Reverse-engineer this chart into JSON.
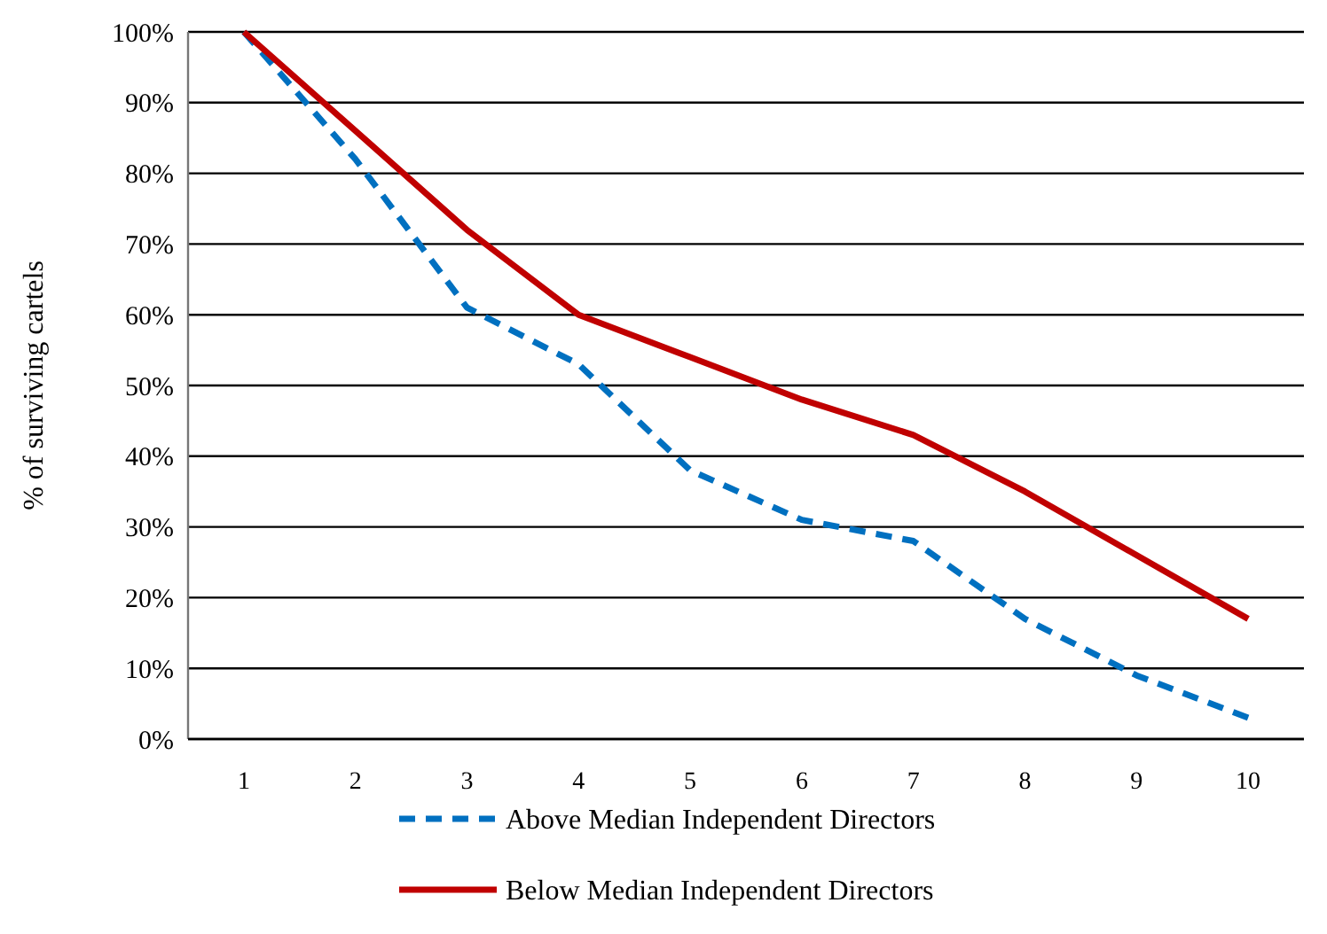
{
  "chart_data": {
    "type": "line",
    "ylabel": "% of surviving cartels",
    "categories": [
      "1",
      "2",
      "3",
      "4",
      "5",
      "6",
      "7",
      "8",
      "9",
      "10"
    ],
    "series": [
      {
        "name": "Above Median Independent Directors",
        "color": "#0070c0",
        "line_style": "dashed",
        "values": [
          100,
          82,
          61,
          53,
          38,
          31,
          28,
          17,
          9,
          3
        ]
      },
      {
        "name": "Below Median Independent Directors",
        "color": "#c00000",
        "line_style": "solid",
        "values": [
          100,
          86,
          72,
          60,
          54,
          48,
          43,
          35,
          26,
          17
        ]
      }
    ],
    "ylim": [
      0,
      100
    ],
    "yticks": [
      {
        "value": 0,
        "label": "0%"
      },
      {
        "value": 10,
        "label": "10%"
      },
      {
        "value": 20,
        "label": "20%"
      },
      {
        "value": 30,
        "label": "30%"
      },
      {
        "value": 40,
        "label": "40%"
      },
      {
        "value": 50,
        "label": "50%"
      },
      {
        "value": 60,
        "label": "60%"
      },
      {
        "value": 70,
        "label": "70%"
      },
      {
        "value": 80,
        "label": "80%"
      },
      {
        "value": 90,
        "label": "90%"
      },
      {
        "value": 100,
        "label": "100%"
      }
    ],
    "grid": "y",
    "legend": "bottom",
    "marker": "none"
  }
}
